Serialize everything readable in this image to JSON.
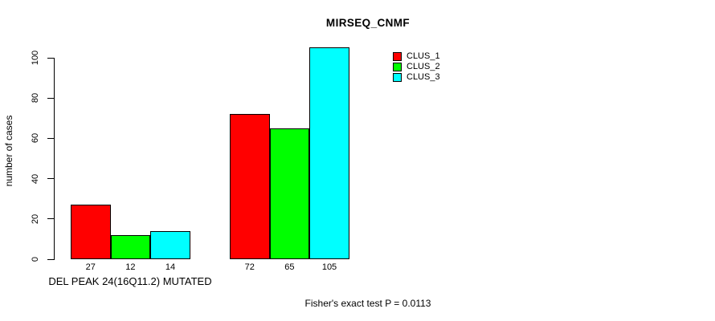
{
  "chart_data": {
    "type": "bar",
    "title": "MIRSEQ_CNMF",
    "ylabel": "number of cases",
    "xlabel": "DEL PEAK 24(16Q11.2) MUTATED",
    "footnote": "Fisher's exact test P = 0.0113",
    "ylim": [
      0,
      100
    ],
    "yticks": [
      0,
      20,
      40,
      60,
      80,
      100
    ],
    "grid": false,
    "background_color": "#ffffff",
    "bar_border_color": "#000000",
    "legend_position": "top-right",
    "series": [
      {
        "name": "CLUS_1",
        "color": "#FF0000",
        "values": [
          27,
          72
        ]
      },
      {
        "name": "CLUS_2",
        "color": "#00FF00",
        "values": [
          12,
          65
        ]
      },
      {
        "name": "CLUS_3",
        "color": "#00FFFF",
        "values": [
          14,
          105
        ]
      }
    ],
    "groups": [
      {
        "label": "DEL PEAK 24(16Q11.2) MUTATED",
        "values": [
          27,
          12,
          14
        ]
      },
      {
        "label": "",
        "values": [
          72,
          65,
          105
        ]
      }
    ]
  }
}
